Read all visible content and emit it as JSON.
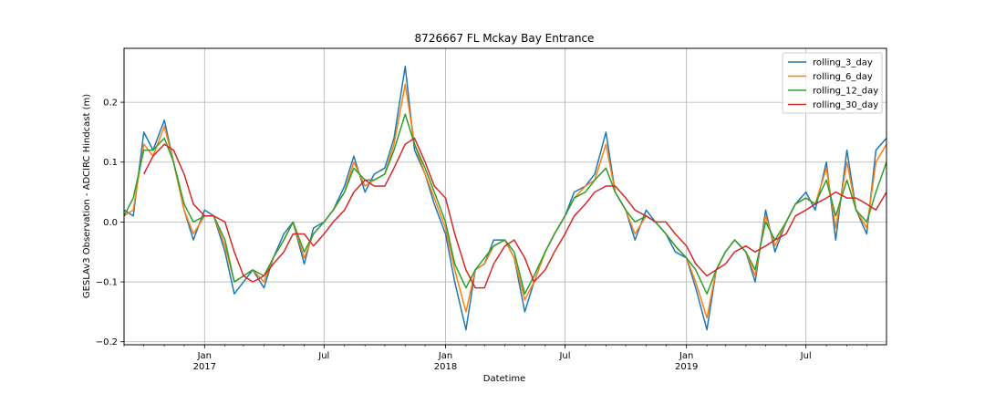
{
  "chart_data": {
    "type": "line",
    "title": "8726667 FL Mckay Bay Entrance",
    "xlabel": "Datetime",
    "ylabel": "GESLAv3 Observation - ADCIRC Hindcast (m)",
    "xlim": [
      "2016-09-01",
      "2019-10-31"
    ],
    "ylim": [
      -0.205,
      0.29
    ],
    "grid": true,
    "legend_position": "top-right",
    "yticks": [
      -0.2,
      -0.1,
      0.0,
      0.1,
      0.2
    ],
    "ytick_labels": [
      "−0.2",
      "−0.1",
      "0.0",
      "0.1",
      "0.2"
    ],
    "xticks_major": [
      {
        "date": "2017-01-01",
        "label": "Jan",
        "sublabel": "2017"
      },
      {
        "date": "2017-07-01",
        "label": "Jul",
        "sublabel": ""
      },
      {
        "date": "2018-01-01",
        "label": "Jan",
        "sublabel": "2018"
      },
      {
        "date": "2018-07-01",
        "label": "Jul",
        "sublabel": ""
      },
      {
        "date": "2019-01-01",
        "label": "Jan",
        "sublabel": "2019"
      },
      {
        "date": "2019-07-01",
        "label": "Jul",
        "sublabel": ""
      }
    ],
    "x": [
      "2016-09-01",
      "2016-09-15",
      "2016-10-01",
      "2016-10-15",
      "2016-11-01",
      "2016-11-15",
      "2016-12-01",
      "2016-12-15",
      "2017-01-01",
      "2017-01-15",
      "2017-02-01",
      "2017-02-15",
      "2017-03-01",
      "2017-03-15",
      "2017-04-01",
      "2017-04-15",
      "2017-05-01",
      "2017-05-15",
      "2017-06-01",
      "2017-06-15",
      "2017-07-01",
      "2017-07-15",
      "2017-08-01",
      "2017-08-15",
      "2017-09-01",
      "2017-09-15",
      "2017-10-01",
      "2017-10-15",
      "2017-11-01",
      "2017-11-15",
      "2017-12-01",
      "2017-12-15",
      "2018-01-01",
      "2018-01-15",
      "2018-02-01",
      "2018-02-15",
      "2018-03-01",
      "2018-03-15",
      "2018-04-01",
      "2018-04-15",
      "2018-05-01",
      "2018-05-15",
      "2018-06-01",
      "2018-06-15",
      "2018-07-01",
      "2018-07-15",
      "2018-08-01",
      "2018-08-15",
      "2018-09-01",
      "2018-09-15",
      "2018-10-01",
      "2018-10-15",
      "2018-11-01",
      "2018-11-15",
      "2018-12-01",
      "2018-12-15",
      "2019-01-01",
      "2019-01-15",
      "2019-02-01",
      "2019-02-15",
      "2019-03-01",
      "2019-03-15",
      "2019-04-01",
      "2019-04-15",
      "2019-05-01",
      "2019-05-15",
      "2019-06-01",
      "2019-06-15",
      "2019-07-01",
      "2019-07-15",
      "2019-08-01",
      "2019-08-15",
      "2019-09-01",
      "2019-09-15",
      "2019-10-01",
      "2019-10-15",
      "2019-10-31"
    ],
    "series": [
      {
        "name": "rolling_3_day",
        "color": "#1f77b4",
        "values": [
          0.02,
          0.01,
          0.15,
          0.12,
          0.17,
          0.1,
          0.02,
          -0.03,
          0.02,
          0.01,
          -0.05,
          -0.12,
          -0.1,
          -0.08,
          -0.11,
          -0.06,
          -0.02,
          0.0,
          -0.07,
          -0.01,
          0.0,
          0.02,
          0.06,
          0.11,
          0.05,
          0.08,
          0.09,
          0.14,
          0.26,
          0.12,
          0.08,
          0.03,
          -0.02,
          -0.1,
          -0.18,
          -0.08,
          -0.07,
          -0.03,
          -0.03,
          -0.06,
          -0.15,
          -0.1,
          -0.05,
          -0.02,
          0.01,
          0.05,
          0.06,
          0.08,
          0.15,
          0.05,
          0.02,
          -0.03,
          0.02,
          0.0,
          -0.02,
          -0.05,
          -0.06,
          -0.11,
          -0.18,
          -0.08,
          -0.05,
          -0.03,
          -0.05,
          -0.1,
          0.02,
          -0.05,
          0.0,
          0.03,
          0.05,
          0.02,
          0.1,
          -0.03,
          0.12,
          0.02,
          -0.02,
          0.12,
          0.14
        ]
      },
      {
        "name": "rolling_6_day",
        "color": "#ff7f0e",
        "values": [
          0.01,
          0.02,
          0.13,
          0.11,
          0.16,
          0.1,
          0.02,
          -0.02,
          0.01,
          0.01,
          -0.04,
          -0.1,
          -0.09,
          -0.08,
          -0.1,
          -0.06,
          -0.03,
          0.0,
          -0.06,
          -0.02,
          0.0,
          0.02,
          0.05,
          0.1,
          0.06,
          0.07,
          0.08,
          0.13,
          0.23,
          0.13,
          0.08,
          0.04,
          -0.01,
          -0.08,
          -0.15,
          -0.08,
          -0.07,
          -0.04,
          -0.03,
          -0.06,
          -0.13,
          -0.1,
          -0.05,
          -0.02,
          0.01,
          0.04,
          0.06,
          0.07,
          0.13,
          0.05,
          0.02,
          -0.02,
          0.01,
          0.0,
          -0.02,
          -0.04,
          -0.06,
          -0.1,
          -0.16,
          -0.08,
          -0.05,
          -0.03,
          -0.05,
          -0.09,
          0.01,
          -0.04,
          0.0,
          0.03,
          0.04,
          0.03,
          0.09,
          -0.01,
          0.1,
          0.02,
          -0.01,
          0.1,
          0.13
        ]
      },
      {
        "name": "rolling_12_day",
        "color": "#2ca02c",
        "values": [
          0.01,
          0.04,
          0.12,
          0.12,
          0.14,
          0.1,
          0.03,
          0.0,
          0.01,
          0.01,
          -0.03,
          -0.1,
          -0.09,
          -0.08,
          -0.09,
          -0.06,
          -0.03,
          0.0,
          -0.05,
          -0.02,
          0.0,
          0.02,
          0.05,
          0.09,
          0.07,
          0.07,
          0.08,
          0.12,
          0.18,
          0.13,
          0.09,
          0.05,
          0.0,
          -0.07,
          -0.11,
          -0.08,
          -0.06,
          -0.04,
          -0.03,
          -0.05,
          -0.12,
          -0.09,
          -0.05,
          -0.02,
          0.01,
          0.04,
          0.05,
          0.07,
          0.09,
          0.05,
          0.02,
          0.0,
          0.01,
          0.0,
          -0.02,
          -0.04,
          -0.06,
          -0.08,
          -0.12,
          -0.08,
          -0.05,
          -0.03,
          -0.05,
          -0.08,
          0.0,
          -0.03,
          0.0,
          0.03,
          0.04,
          0.03,
          0.07,
          0.01,
          0.07,
          0.02,
          0.0,
          0.05,
          0.1
        ]
      },
      {
        "name": "rolling_30_day",
        "color": "#d62728",
        "values": [
          null,
          null,
          0.08,
          0.11,
          0.13,
          0.12,
          0.08,
          0.03,
          0.01,
          0.01,
          0.0,
          -0.05,
          -0.09,
          -0.1,
          -0.09,
          -0.07,
          -0.05,
          -0.02,
          -0.02,
          -0.04,
          -0.02,
          0.0,
          0.02,
          0.05,
          0.07,
          0.06,
          0.06,
          0.09,
          0.13,
          0.14,
          0.1,
          0.06,
          0.04,
          -0.02,
          -0.08,
          -0.11,
          -0.11,
          -0.07,
          -0.04,
          -0.03,
          -0.06,
          -0.1,
          -0.08,
          -0.05,
          -0.02,
          0.01,
          0.03,
          0.05,
          0.06,
          0.06,
          0.04,
          0.02,
          0.01,
          0.0,
          0.0,
          -0.02,
          -0.04,
          -0.07,
          -0.09,
          -0.08,
          -0.07,
          -0.05,
          -0.04,
          -0.05,
          -0.04,
          -0.03,
          -0.02,
          0.01,
          0.02,
          0.03,
          0.04,
          0.05,
          0.04,
          0.04,
          0.03,
          0.02,
          0.05
        ]
      }
    ]
  }
}
